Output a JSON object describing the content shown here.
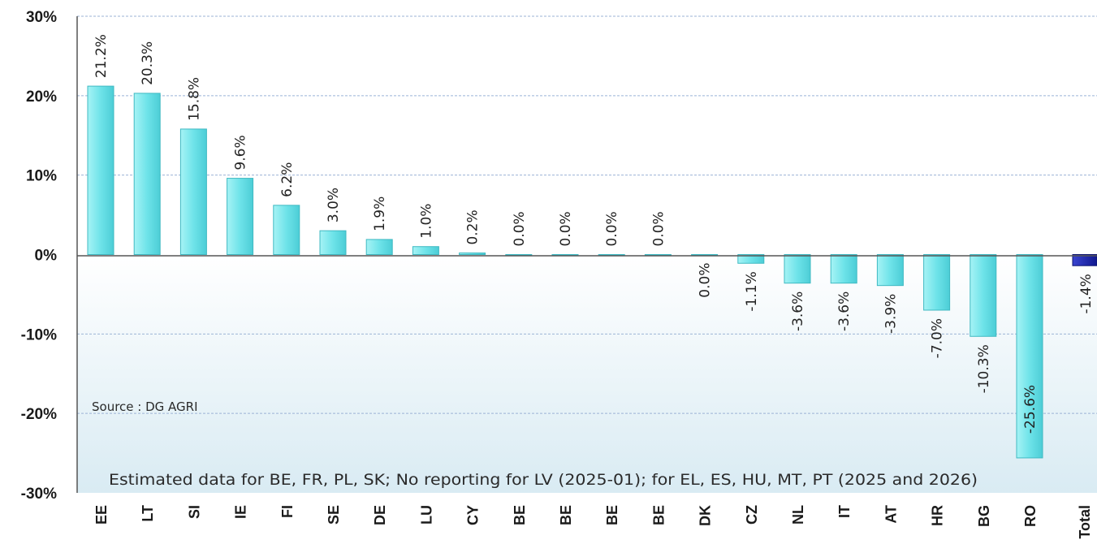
{
  "chart_data": {
    "type": "bar",
    "categories": [
      "EE",
      "LT",
      "SI",
      "IE",
      "FI",
      "SE",
      "DE",
      "LU",
      "CY",
      "BE",
      "BE",
      "BE",
      "BE",
      "DK",
      "CZ",
      "NL",
      "IT",
      "AT",
      "HR",
      "BG",
      "RO",
      "Total"
    ],
    "values": [
      21.2,
      20.3,
      15.8,
      9.6,
      6.2,
      3.0,
      1.9,
      1.0,
      0.2,
      0.0,
      0.0,
      0.0,
      0.0,
      0.0,
      -1.1,
      -3.6,
      -3.6,
      -3.9,
      -7.0,
      -10.3,
      -25.6,
      -1.4
    ],
    "data_labels": [
      "21.2%",
      "20.3%",
      "15.8%",
      "9.6%",
      "6.2%",
      "3.0%",
      "1.9%",
      "1.0%",
      "0.2%",
      "0.0%",
      "0.0%",
      "0.0%",
      "0.0%",
      "0.0%",
      "-1.1%",
      "-3.6%",
      "-3.6%",
      "-3.9%",
      "-7.0%",
      "-10.3%",
      "-25.6%",
      "-1.4%"
    ],
    "y_tick_labels": [
      "30%",
      "20%",
      "10%",
      "0%",
      "-10%",
      "-20%",
      "-30%"
    ],
    "y_tick_values": [
      30,
      20,
      10,
      0,
      -10,
      -20,
      -30
    ],
    "ylim": [
      -30,
      30
    ],
    "grid": true,
    "colors": {
      "bar": "#7fe8ec",
      "bar_edge": "#3fb9c2",
      "total_bar": "#1a22a8",
      "total_edge": "#0b1270",
      "grid": "#9bb3d6",
      "background_lower": "#e2f0f6"
    },
    "annotations": {
      "source": "Source : DG AGRI",
      "footnote": "Estimated data for BE, FR, PL, SK; No reporting for LV (2025-01); for  EL, ES, HU,  MT,  PT (2025 and 2026)"
    }
  }
}
